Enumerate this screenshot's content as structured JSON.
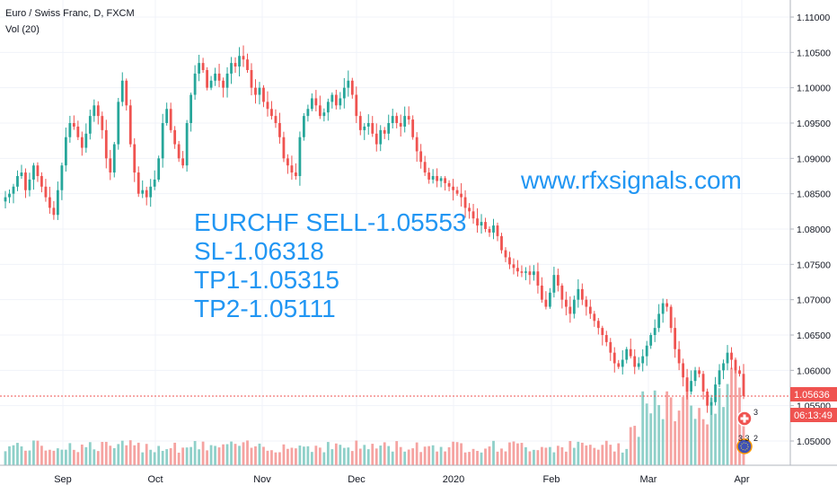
{
  "header": {
    "title": "Euro / Swiss Franc, D, FXCM",
    "volume_indicator": "Vol (20)"
  },
  "annotation": {
    "lines": [
      "EURCHF SELL-1.05553",
      "SL-1.06318",
      "TP1-1.05315",
      "TP2-1.05111"
    ],
    "website": "www.rfxsignals.com",
    "color": "#2196f3"
  },
  "price_scale": {
    "ticks": [
      "1.11000",
      "1.10500",
      "1.10000",
      "1.09500",
      "1.09000",
      "1.08500",
      "1.08000",
      "1.07500",
      "1.07000",
      "1.06500",
      "1.06000",
      "1.05500",
      "1.05000"
    ],
    "current_price": "1.05636",
    "countdown": "06:13:49"
  },
  "time_axis": {
    "labels": [
      "Sep",
      "Oct",
      "Nov",
      "Dec",
      "2020",
      "Feb",
      "Mar",
      "Apr"
    ]
  },
  "event_markers": [
    {
      "icon": "swiss-flag-icon",
      "count": "3"
    },
    {
      "icon": "eu-flag-icon",
      "count": "2",
      "extra": "3 3"
    }
  ],
  "colors": {
    "up": "#26a69a",
    "down": "#ef5350",
    "up_volume": "#8fd0c9",
    "down_volume": "#f5a3a1",
    "price_line": "#ef5350",
    "grid": "#f0f3fa"
  },
  "chart_data": {
    "type": "candlestick",
    "title": "Euro / Swiss Franc, D, FXCM",
    "x_labels": [
      "Sep",
      "Oct",
      "Nov",
      "Dec",
      "2020",
      "Feb",
      "Mar",
      "Apr"
    ],
    "ylim": [
      1.0465,
      1.1115
    ],
    "grid": true,
    "last_price": 1.05636,
    "close": [
      1.0845,
      1.085,
      1.086,
      1.0875,
      1.088,
      1.0855,
      1.087,
      1.089,
      1.0875,
      1.086,
      1.0845,
      1.083,
      1.082,
      1.0855,
      1.089,
      1.093,
      1.095,
      1.0945,
      1.093,
      1.0915,
      1.0935,
      1.096,
      1.0975,
      1.096,
      1.094,
      1.09,
      1.088,
      1.092,
      1.098,
      1.101,
      1.0975,
      1.092,
      1.088,
      1.085,
      1.0855,
      1.0845,
      1.086,
      1.087,
      1.09,
      1.095,
      1.097,
      1.094,
      1.092,
      1.09,
      1.089,
      1.095,
      1.099,
      1.102,
      1.1035,
      1.1025,
      1.1,
      1.101,
      1.102,
      1.101,
      1.1,
      1.102,
      1.1035,
      1.103,
      1.1045,
      1.104,
      1.1025,
      1.1,
      1.099,
      1.1,
      1.098,
      1.097,
      1.096,
      1.095,
      1.093,
      1.09,
      1.089,
      1.088,
      1.0875,
      1.093,
      1.096,
      1.097,
      1.0985,
      1.0975,
      1.096,
      1.0965,
      1.098,
      1.099,
      1.0975,
      1.0985,
      1.1,
      1.101,
      1.099,
      1.096,
      1.094,
      1.0945,
      1.095,
      1.0935,
      1.092,
      1.094,
      1.0935,
      1.095,
      1.096,
      1.095,
      1.0945,
      1.096,
      1.0955,
      1.093,
      1.091,
      1.0895,
      1.088,
      1.087,
      1.0875,
      1.0868,
      1.0872,
      1.0865,
      1.086,
      1.0855,
      1.085,
      1.0845,
      1.083,
      1.0825,
      1.0815,
      1.0805,
      1.081,
      1.08,
      1.0795,
      1.0805,
      1.079,
      1.077,
      1.076,
      1.075,
      1.0745,
      1.074,
      1.0738,
      1.074,
      1.0735,
      1.074,
      1.072,
      1.07,
      1.069,
      1.071,
      1.0735,
      1.072,
      1.07,
      1.069,
      1.068,
      1.07,
      1.0715,
      1.07,
      1.069,
      1.068,
      1.067,
      1.066,
      1.065,
      1.064,
      1.0625,
      1.061,
      1.0605,
      1.0615,
      1.063,
      1.062,
      1.0605,
      1.061,
      1.062,
      1.0635,
      1.065,
      1.066,
      1.068,
      1.0695,
      1.069,
      1.066,
      1.063,
      1.061,
      1.059,
      1.057,
      1.0585,
      1.06,
      1.0595,
      1.057,
      1.055,
      1.0555,
      1.058,
      1.06,
      1.061,
      1.0625,
      1.0615,
      1.06,
      1.0595,
      1.05636
    ]
  }
}
